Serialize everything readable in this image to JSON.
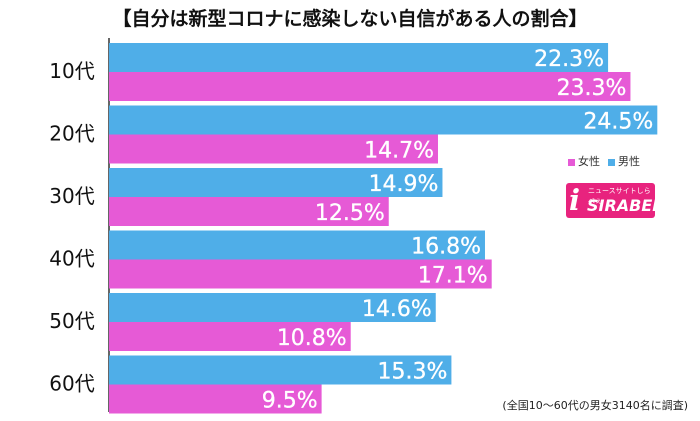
{
  "title": "【自分は新型コロナに感染しない自信がある人の割合】",
  "legend": {
    "female_label": "女性",
    "male_label": "男性"
  },
  "logo": {
    "tagline": "ニュースサイトしらべぇ",
    "brand": "SIRABEE",
    "mark": "i"
  },
  "note": "(全国10〜60代の男女3140名に調査)",
  "colors": {
    "male": "#4faee8",
    "female": "#e65ad6"
  },
  "chart_data": {
    "type": "bar",
    "orientation": "horizontal",
    "categories": [
      "10代",
      "20代",
      "30代",
      "40代",
      "50代",
      "60代"
    ],
    "series": [
      {
        "name": "男性",
        "values": [
          22.3,
          24.5,
          14.9,
          16.8,
          14.6,
          15.3
        ]
      },
      {
        "name": "女性",
        "values": [
          23.3,
          14.7,
          12.5,
          17.1,
          10.8,
          9.5
        ]
      }
    ],
    "value_suffix": "%"
  }
}
